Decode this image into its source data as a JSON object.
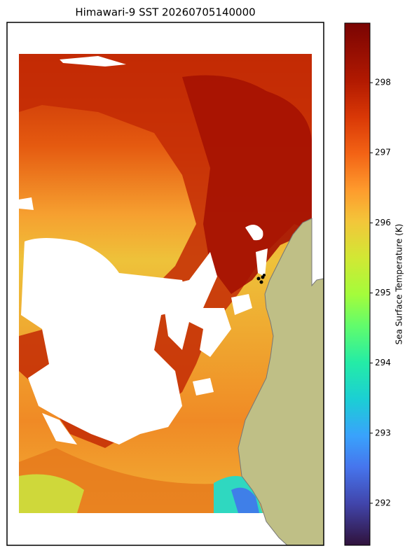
{
  "chart_data": {
    "type": "colormap",
    "title": "Himawari-9 SST 20260705140000",
    "colorbar": {
      "label": "Sea Surface Temperature (K)",
      "lim": [
        291.4,
        298.85
      ],
      "ticks": [
        292,
        293,
        294,
        295,
        296,
        297,
        298
      ]
    }
  }
}
